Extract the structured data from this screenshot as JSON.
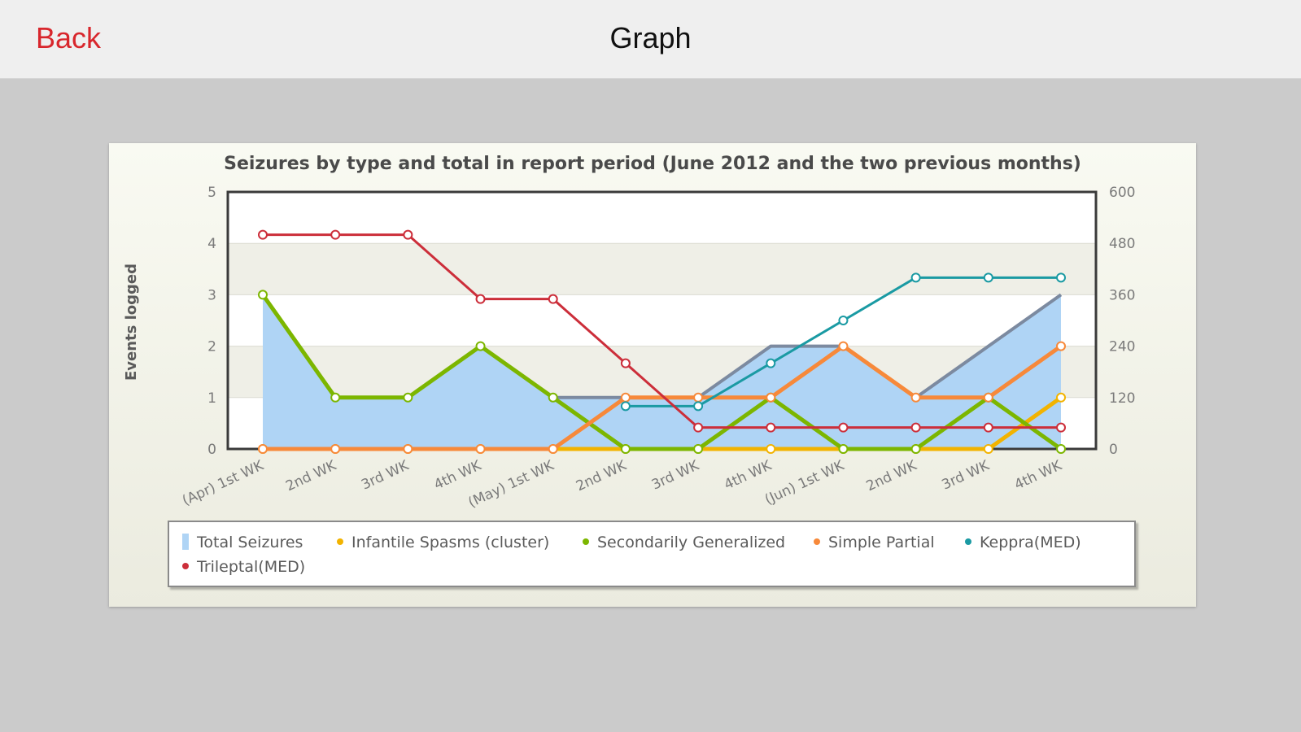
{
  "navbar": {
    "back_label": "Back",
    "title": "Graph"
  },
  "colors": {
    "back": "#d8262c",
    "total": "#afd4f5",
    "infantile": "#f2b300",
    "secondary": "#7cb600",
    "simple": "#f7893a",
    "keppra": "#1a9aa3",
    "trileptal": "#cc2e3a"
  },
  "chart_data": {
    "type": "line",
    "title": "Seizures by type and total in report period (June 2012 and the two previous months)",
    "ylabel": "Events logged",
    "ylim": [
      0,
      5
    ],
    "y2lim": [
      0,
      600
    ],
    "yticks": [
      "0",
      "1",
      "2",
      "3",
      "4",
      "5"
    ],
    "y2ticks": [
      "0",
      "120",
      "240",
      "360",
      "480",
      "600"
    ],
    "categories": [
      "(Apr) 1st WK",
      "2nd WK",
      "3rd WK",
      "4th WK",
      "(May) 1st WK",
      "2nd WK",
      "3rd WK",
      "4th WK",
      "(Jun) 1st WK",
      "2nd WK",
      "3rd WK",
      "4th WK"
    ],
    "series": [
      {
        "name": "Total Seizures",
        "type": "area",
        "axis": "left",
        "values": [
          3,
          1,
          1,
          2,
          1,
          1,
          1,
          2,
          2,
          1,
          2,
          3
        ]
      },
      {
        "name": "Infantile Spasms (cluster)",
        "type": "line",
        "axis": "left",
        "values": [
          0,
          0,
          0,
          0,
          0,
          0,
          0,
          0,
          0,
          0,
          0,
          1
        ]
      },
      {
        "name": "Secondarily Generalized",
        "type": "line",
        "axis": "left",
        "values": [
          3,
          1,
          1,
          2,
          1,
          0,
          0,
          1,
          0,
          0,
          1,
          0
        ]
      },
      {
        "name": "Simple Partial",
        "type": "line",
        "axis": "left",
        "values": [
          0,
          0,
          0,
          0,
          0,
          1,
          1,
          1,
          2,
          1,
          1,
          2
        ]
      },
      {
        "name": "Keppra(MED)",
        "type": "line",
        "axis": "right",
        "values": [
          null,
          null,
          null,
          null,
          null,
          100,
          100,
          200,
          300,
          400,
          400,
          400
        ]
      },
      {
        "name": "Trileptal(MED)",
        "type": "line",
        "axis": "right",
        "values": [
          500,
          500,
          500,
          350,
          350,
          200,
          50,
          50,
          50,
          50,
          50,
          50
        ]
      }
    ],
    "legend": "bottom",
    "grid": true
  }
}
